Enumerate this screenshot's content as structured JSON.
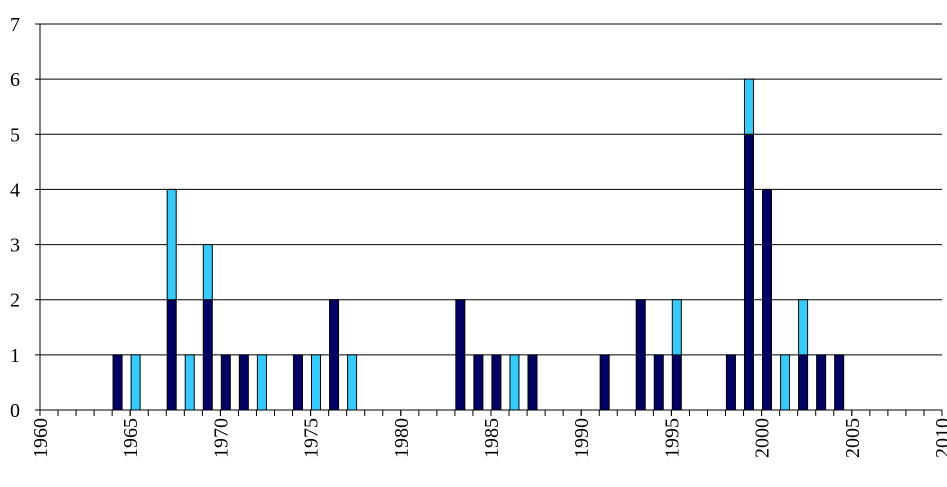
{
  "chart_data": {
    "type": "bar",
    "stacked": true,
    "x": [
      1964,
      1965,
      1967,
      1968,
      1969,
      1970,
      1971,
      1972,
      1974,
      1975,
      1976,
      1977,
      1983,
      1984,
      1985,
      1986,
      1987,
      1991,
      1993,
      1994,
      1995,
      1998,
      1999,
      2000,
      2001,
      2002,
      2003,
      2004
    ],
    "series": [
      {
        "color": "#000066",
        "values": [
          1,
          0,
          2,
          0,
          2,
          1,
          1,
          0,
          1,
          0,
          2,
          0,
          2,
          1,
          1,
          0,
          1,
          1,
          2,
          1,
          1,
          1,
          5,
          4,
          0,
          1,
          1,
          1
        ]
      },
      {
        "color": "#33ccff",
        "values": [
          0,
          1,
          2,
          1,
          1,
          0,
          0,
          1,
          0,
          1,
          0,
          1,
          0,
          0,
          0,
          1,
          0,
          0,
          0,
          0,
          1,
          0,
          1,
          0,
          1,
          1,
          0,
          0
        ]
      }
    ],
    "xlim": [
      1960,
      2010
    ],
    "xticks": [
      1960,
      1965,
      1970,
      1975,
      1980,
      1985,
      1990,
      1995,
      2000,
      2005,
      2010
    ],
    "ylim": [
      0,
      7
    ],
    "yticks": [
      0,
      1,
      2,
      3,
      4,
      5,
      6,
      7
    ],
    "grid": true
  }
}
